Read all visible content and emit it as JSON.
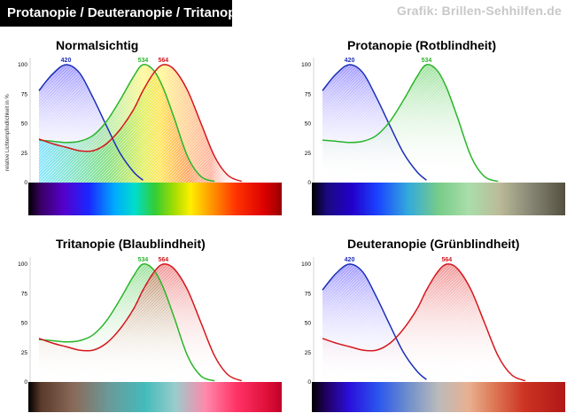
{
  "header": {
    "title": "Protanopie / Deuteranopie / Tritanopie",
    "credit": "Grafik: Brillen-Sehhilfen.de"
  },
  "colors": {
    "blue_cone": "#1a2fb8",
    "green_cone": "#2bb52b",
    "red_cone": "#d4171d",
    "header_bg": "#000000",
    "credit_text": "#c8c8c8"
  },
  "chart_data": [
    {
      "type": "line",
      "title": "Normalsichtig",
      "ylabel": "relative Lichtempfindlichkeit in %",
      "xlabel": "",
      "ylim": [
        0,
        100
      ],
      "yticks": [
        "0",
        "25",
        "50",
        "75",
        "100"
      ],
      "x": [
        380,
        400,
        420,
        440,
        460,
        480,
        500,
        520,
        534,
        550,
        564,
        580,
        600,
        620,
        640,
        660,
        680,
        700
      ],
      "series": [
        {
          "name": "420",
          "color": "blue",
          "values": [
            78,
            92,
            100,
            93,
            72,
            48,
            25,
            9,
            2,
            null,
            null,
            null,
            null,
            null,
            null,
            null,
            null,
            null
          ]
        },
        {
          "name": "534",
          "color": "green",
          "values": [
            36,
            35,
            34,
            35,
            40,
            52,
            70,
            90,
            100,
            95,
            80,
            55,
            22,
            5,
            1,
            null,
            null,
            null
          ]
        },
        {
          "name": "564",
          "color": "red",
          "values": [
            37,
            33,
            30,
            27,
            27,
            33,
            45,
            62,
            78,
            93,
            100,
            96,
            78,
            50,
            22,
            6,
            1,
            null
          ]
        }
      ],
      "spectrum": "normal"
    },
    {
      "type": "line",
      "title": "Protanopie (Rotblindheit)",
      "ylim": [
        0,
        100
      ],
      "yticks": [
        "0",
        "25",
        "50",
        "75",
        "100"
      ],
      "x": [
        380,
        400,
        420,
        440,
        460,
        480,
        500,
        520,
        534,
        550,
        564,
        580,
        600,
        620,
        640,
        660,
        680,
        700
      ],
      "series": [
        {
          "name": "420",
          "color": "blue",
          "values": [
            78,
            92,
            100,
            93,
            72,
            48,
            25,
            9,
            2,
            null,
            null,
            null,
            null,
            null,
            null,
            null,
            null,
            null
          ]
        },
        {
          "name": "534",
          "color": "green",
          "values": [
            36,
            35,
            34,
            35,
            40,
            52,
            70,
            90,
            100,
            95,
            80,
            55,
            22,
            5,
            1,
            null,
            null,
            null
          ]
        }
      ],
      "spectrum": "protan"
    },
    {
      "type": "line",
      "title": "Tritanopie (Blaublindheit)",
      "ylim": [
        0,
        100
      ],
      "yticks": [
        "0",
        "25",
        "50",
        "75",
        "100"
      ],
      "x": [
        380,
        400,
        420,
        440,
        460,
        480,
        500,
        520,
        534,
        550,
        564,
        580,
        600,
        620,
        640,
        660,
        680,
        700
      ],
      "series": [
        {
          "name": "534",
          "color": "green",
          "values": [
            36,
            35,
            34,
            35,
            40,
            52,
            70,
            90,
            100,
            95,
            80,
            55,
            22,
            5,
            1,
            null,
            null,
            null
          ]
        },
        {
          "name": "564",
          "color": "red",
          "values": [
            37,
            33,
            30,
            27,
            27,
            33,
            45,
            62,
            78,
            93,
            100,
            96,
            78,
            50,
            22,
            6,
            1,
            null
          ]
        }
      ],
      "spectrum": "tritan"
    },
    {
      "type": "line",
      "title": "Deuteranopie (Grünblindheit)",
      "ylim": [
        0,
        100
      ],
      "yticks": [
        "0",
        "25",
        "50",
        "75",
        "100"
      ],
      "x": [
        380,
        400,
        420,
        440,
        460,
        480,
        500,
        520,
        534,
        550,
        564,
        580,
        600,
        620,
        640,
        660,
        680,
        700
      ],
      "series": [
        {
          "name": "420",
          "color": "blue",
          "values": [
            78,
            92,
            100,
            93,
            72,
            48,
            25,
            9,
            2,
            null,
            null,
            null,
            null,
            null,
            null,
            null,
            null,
            null
          ]
        },
        {
          "name": "564",
          "color": "red",
          "values": [
            37,
            33,
            30,
            27,
            27,
            33,
            45,
            62,
            78,
            93,
            100,
            96,
            78,
            50,
            22,
            6,
            1,
            null
          ]
        }
      ],
      "spectrum": "deutan"
    }
  ]
}
